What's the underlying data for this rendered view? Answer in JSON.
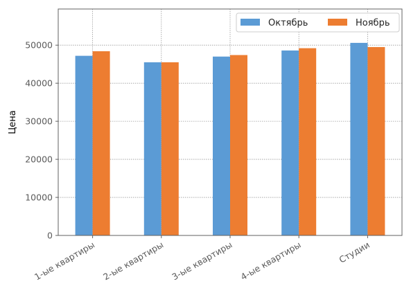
{
  "chart_data": {
    "type": "bar",
    "categories": [
      "1-ые квартиры",
      "2-ые квартиры",
      "3-ые квартиры",
      "4-ые квартиры",
      "Студии"
    ],
    "series": [
      {
        "name": "Октябрь",
        "color": "#5b9bd5",
        "values": [
          47200,
          45500,
          47000,
          48600,
          50600
        ]
      },
      {
        "name": "Ноябрь",
        "color": "#ed7d31",
        "values": [
          48400,
          45500,
          47400,
          49200,
          49500
        ]
      }
    ],
    "xlabel": "",
    "ylabel": "Цена",
    "ylim": [
      0,
      59500
    ],
    "yticks": [
      0,
      10000,
      20000,
      30000,
      40000,
      50000
    ],
    "grid": true,
    "legend_position": "top-right"
  }
}
